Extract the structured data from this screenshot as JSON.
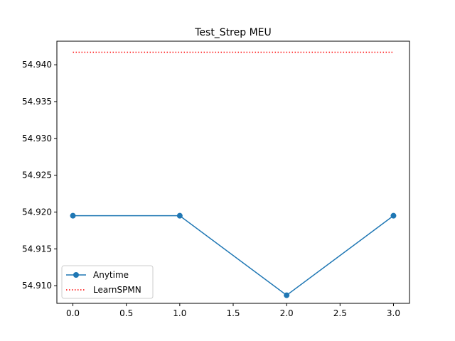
{
  "chart_data": {
    "type": "line",
    "title": "Test_Strep MEU",
    "xlabel": "",
    "ylabel": "",
    "xlim": [
      -0.15,
      3.15
    ],
    "ylim": [
      54.9076,
      54.9432
    ],
    "x_ticks": [
      0.0,
      0.5,
      1.0,
      1.5,
      2.0,
      2.5,
      3.0
    ],
    "x_tick_labels": [
      "0.0",
      "0.5",
      "1.0",
      "1.5",
      "2.0",
      "2.5",
      "3.0"
    ],
    "y_ticks": [
      54.91,
      54.915,
      54.92,
      54.925,
      54.93,
      54.935,
      54.94
    ],
    "y_tick_labels": [
      "54.910",
      "54.915",
      "54.920",
      "54.925",
      "54.930",
      "54.935",
      "54.940"
    ],
    "grid": false,
    "legend_position": "lower-left",
    "series": [
      {
        "name": "Anytime",
        "x": [
          0,
          1,
          2,
          3
        ],
        "values": [
          54.9195,
          54.9195,
          54.9087,
          54.9195
        ],
        "color": "#1f77b4",
        "style": "solid",
        "marker": "circle"
      },
      {
        "name": "LearnSPMN",
        "x": [
          0,
          3
        ],
        "values": [
          54.9417,
          54.9417
        ],
        "color": "#ff0000",
        "style": "dotted",
        "marker": "none"
      }
    ]
  }
}
